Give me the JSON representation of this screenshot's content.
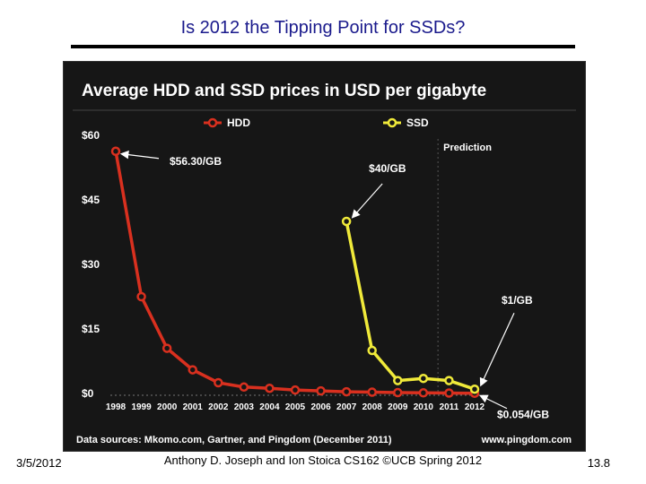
{
  "slide": {
    "title": "Is 2012 the Tipping Point for SSDs?",
    "footer_date": "3/5/2012",
    "footer_center": "Anthony D. Joseph and Ion Stoica CS162 ©UCB Spring 2012",
    "footer_page": "13.8"
  },
  "chart_data": {
    "type": "line",
    "title": "Average HDD and SSD prices in USD per gigabyte",
    "categories": [
      "1998",
      "1999",
      "2000",
      "2001",
      "2002",
      "2003",
      "2004",
      "2005",
      "2006",
      "2007",
      "2008",
      "2009",
      "2010",
      "2011",
      "2012"
    ],
    "y_tick_labels": [
      "$60",
      "$45",
      "$30",
      "$15",
      "$0"
    ],
    "y_ticks": [
      60,
      45,
      30,
      15,
      0
    ],
    "ylim": [
      0,
      60
    ],
    "series": [
      {
        "name": "HDD",
        "color": "#d9301f",
        "values": [
          56.3,
          22.5,
          10.5,
          5.5,
          2.5,
          1.5,
          1.2,
          0.8,
          0.6,
          0.4,
          0.3,
          0.2,
          0.15,
          0.1,
          0.054
        ]
      },
      {
        "name": "SSD",
        "color": "#f0ea3a",
        "values": [
          null,
          null,
          null,
          null,
          null,
          null,
          null,
          null,
          null,
          40,
          10,
          3,
          3.5,
          3,
          1
        ]
      }
    ],
    "annotations": [
      {
        "text": "$56.30/GB",
        "series": "HDD",
        "category": "1998"
      },
      {
        "text": "$40/GB",
        "series": "SSD",
        "category": "2007"
      },
      {
        "text": "$1/GB",
        "series": "SSD",
        "category": "2012"
      },
      {
        "text": "$0.054/GB",
        "series": "HDD",
        "category": "2012"
      }
    ],
    "prediction_label": "Prediction",
    "prediction_from": "2011",
    "source": "Data sources: Mkomo.com, Gartner, and Pingdom (December 2011)",
    "site": "www.pingdom.com",
    "grid": false,
    "legend_position": "top"
  }
}
